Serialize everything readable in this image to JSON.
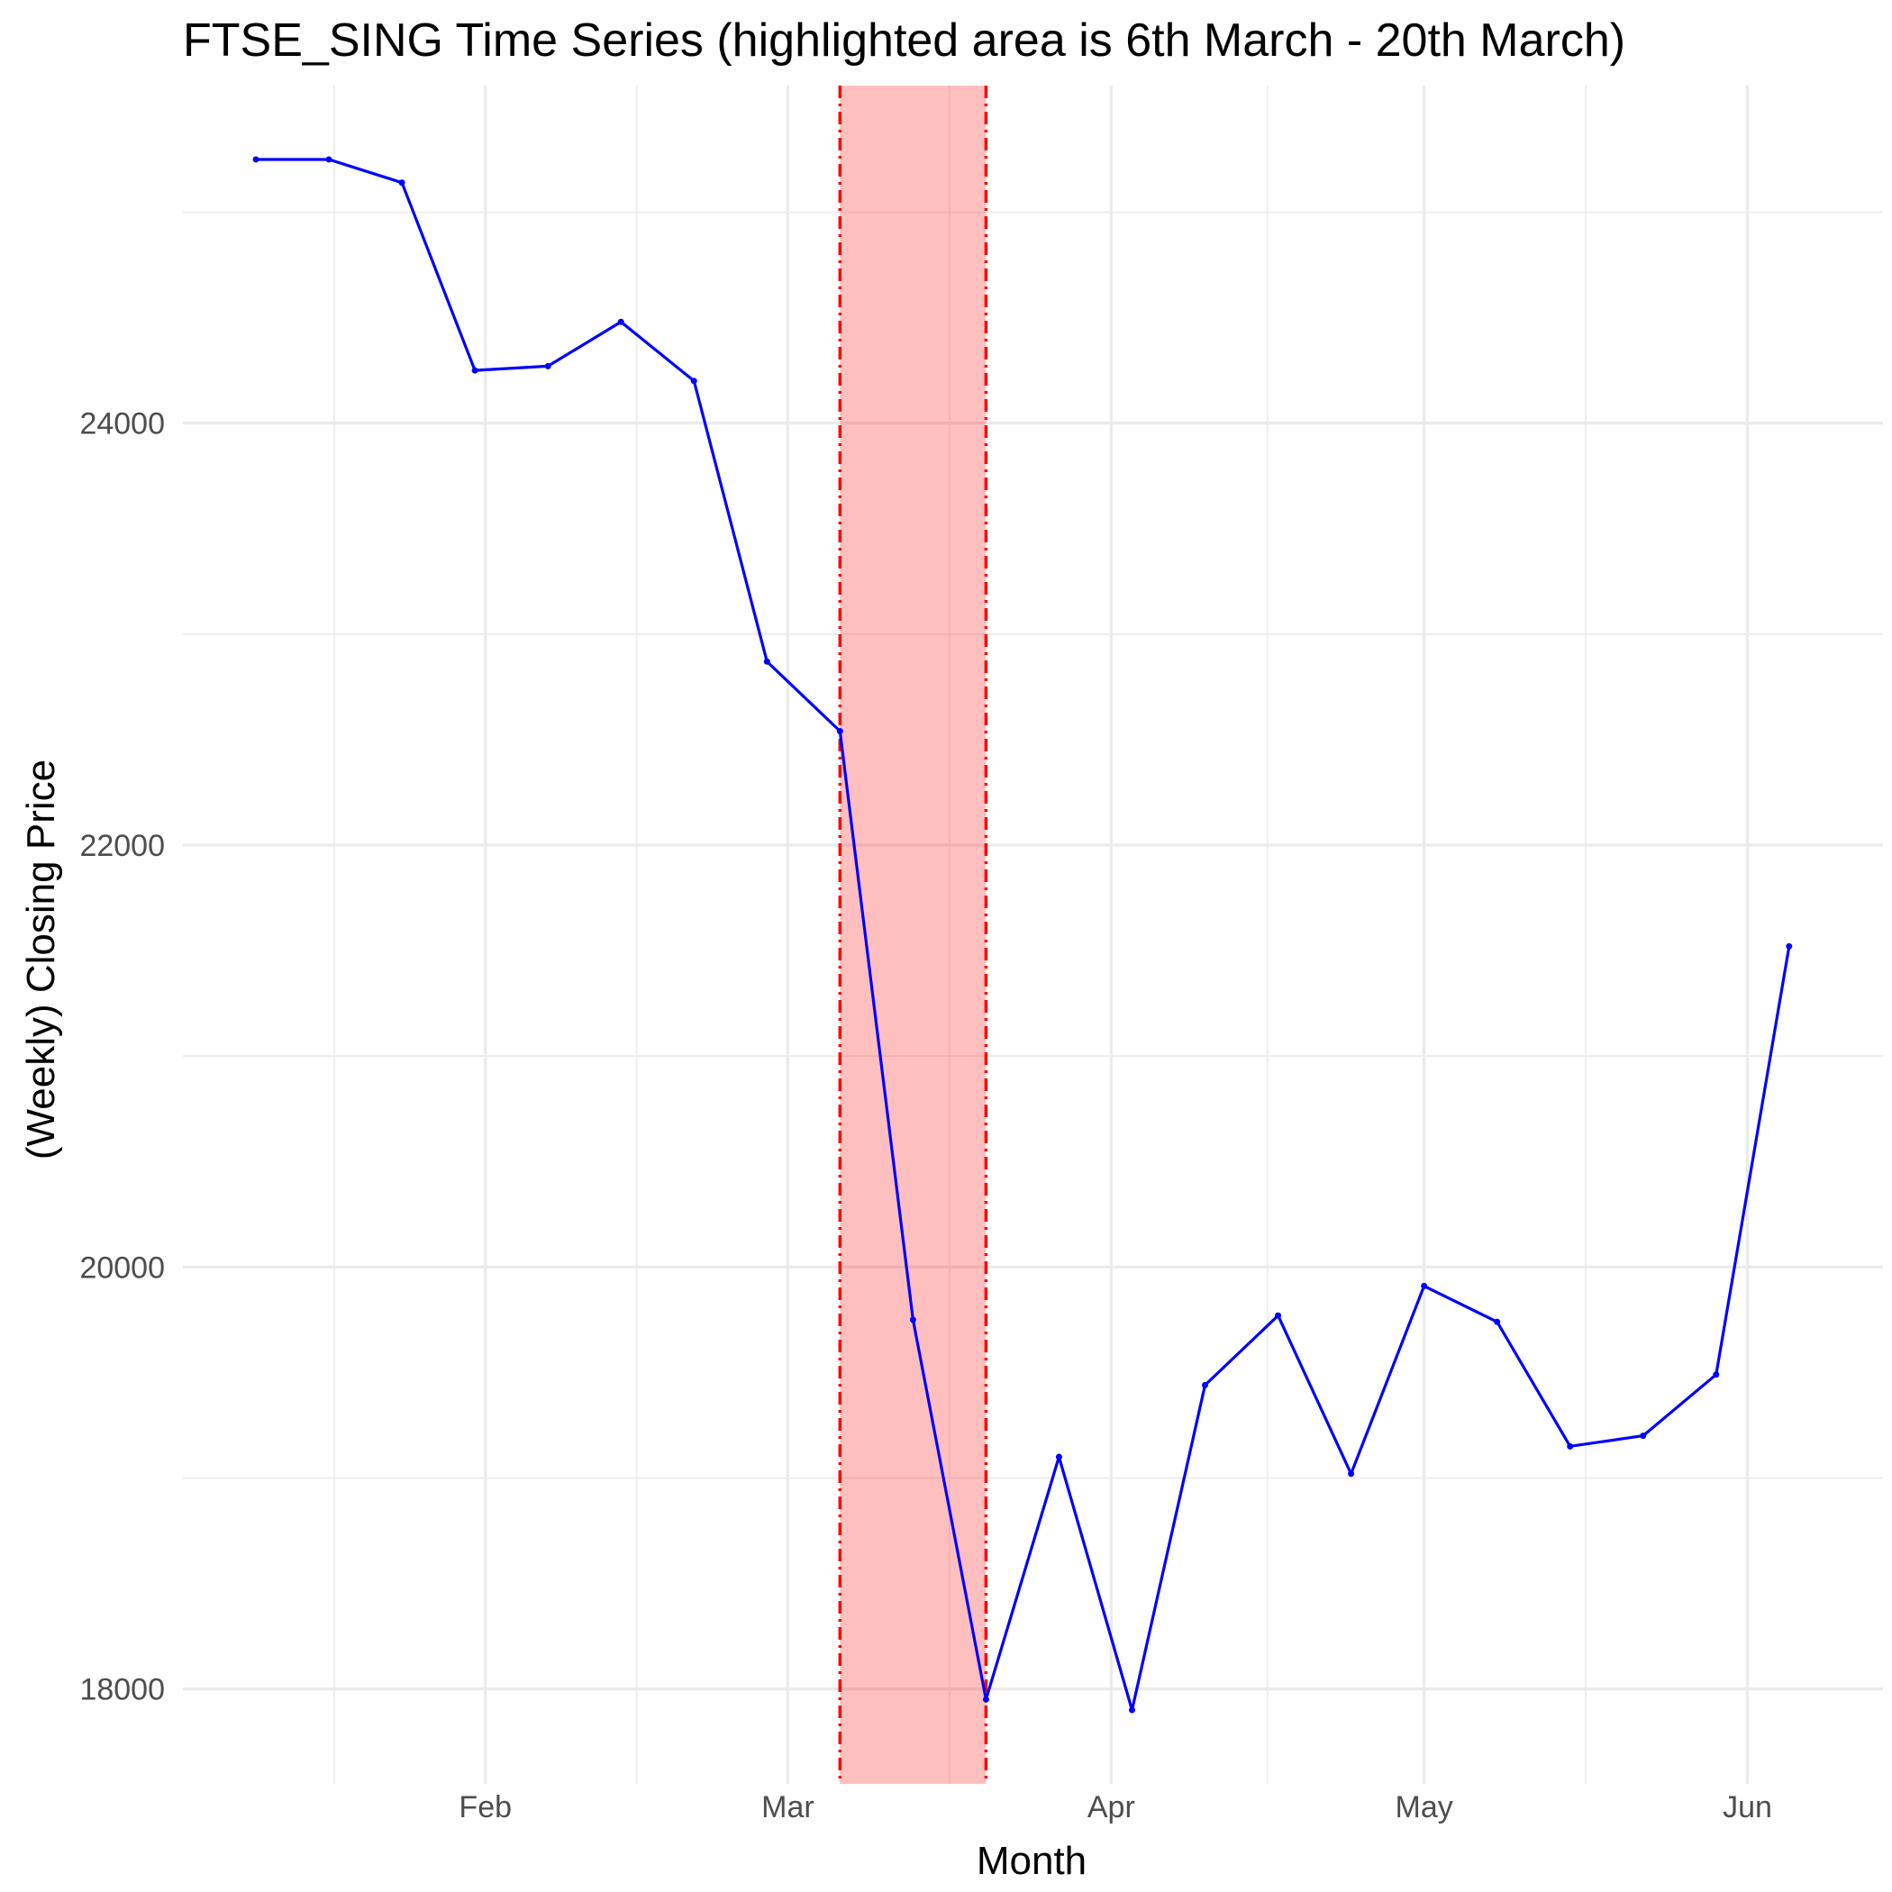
{
  "chart_data": {
    "type": "line",
    "title": "FTSE_SING Time Series (highlighted area is 6th March - 20th March)",
    "xlabel": "Month",
    "ylabel": "(Weekly) Closing Price",
    "x_tick_labels": [
      "Feb",
      "Mar",
      "Apr",
      "May",
      "Jun"
    ],
    "x_tick_dates": [
      "2020-02-01",
      "2020-03-01",
      "2020-04-01",
      "2020-05-01",
      "2020-06-01"
    ],
    "y_ticks": [
      18000,
      20000,
      22000,
      24000
    ],
    "xlim": [
      "2020-01-03",
      "2020-06-14"
    ],
    "ylim": [
      17550,
      25600
    ],
    "grid": true,
    "line_color": "#0000ff",
    "highlight": {
      "start": "2020-03-06",
      "end": "2020-03-20",
      "fill_color": "#ff000040",
      "border_color": "#ff0000"
    },
    "series": [
      {
        "x": [
          "2020-01-10",
          "2020-01-17",
          "2020-01-24",
          "2020-01-31",
          "2020-02-07",
          "2020-02-14",
          "2020-02-21",
          "2020-02-28",
          "2020-03-06",
          "2020-03-13",
          "2020-03-20",
          "2020-03-27",
          "2020-04-03",
          "2020-04-10",
          "2020-04-17",
          "2020-04-24",
          "2020-05-01",
          "2020-05-08",
          "2020-05-15",
          "2020-05-22",
          "2020-05-29",
          "2020-06-05"
        ],
        "values": [
          25250,
          25250,
          25140,
          24250,
          24270,
          24480,
          24200,
          22870,
          22540,
          19750,
          17950,
          19100,
          17900,
          19440,
          19770,
          19020,
          19910,
          19740,
          19150,
          19200,
          19490,
          21520
        ]
      }
    ]
  }
}
